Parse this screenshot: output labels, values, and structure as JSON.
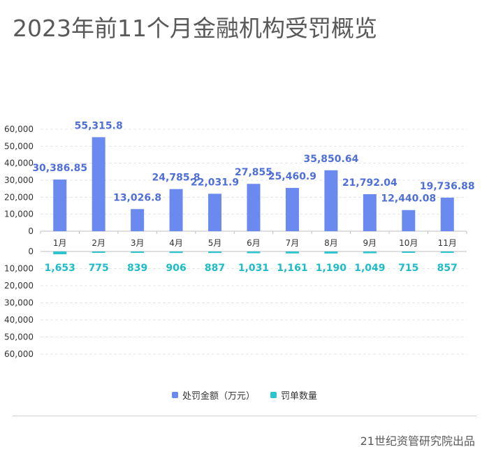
{
  "title": "2023年前11个月金融机构受罚概览",
  "footer": {
    "source": "21世纪资管研究院出品"
  },
  "colors": {
    "amount": "#6b8af0",
    "amount_label": "#4f6fd6",
    "count": "#2ec4cf",
    "count_label": "#1dbcc8",
    "axis_text": "#333333",
    "grid": "#e6e6e6"
  },
  "chart_data": [
    {
      "type": "bar",
      "categories": [
        "1月",
        "2月",
        "3月",
        "4月",
        "5月",
        "6月",
        "7月",
        "8月",
        "9月",
        "10月",
        "11月"
      ],
      "series": [
        {
          "name": "处罚金额（万元）",
          "values": [
            30386.85,
            55315.8,
            13026.8,
            24785.8,
            22031.9,
            27855,
            25460.9,
            35850.64,
            21792.04,
            12440.08,
            19736.88
          ],
          "labels": [
            "30,386.85",
            "55,315.8",
            "13,026.8",
            "24,785.8",
            "22,031.9",
            "27,855",
            "25,460.9",
            "35,850.64",
            "21,792.04",
            "12,440.08",
            "19,736.88"
          ]
        }
      ],
      "ylim": [
        0,
        60000
      ],
      "yticks": [
        0,
        10000,
        20000,
        30000,
        40000,
        50000,
        60000
      ],
      "ytick_labels": [
        "0",
        "10,000",
        "20,000",
        "30,000",
        "40,000",
        "50,000",
        "60,000"
      ],
      "grid": true
    },
    {
      "type": "bar",
      "orientation": "mirrored-downward",
      "categories": [
        "1月",
        "2月",
        "3月",
        "4月",
        "5月",
        "6月",
        "7月",
        "8月",
        "9月",
        "10月",
        "11月"
      ],
      "series": [
        {
          "name": "罚单数量",
          "values": [
            1653,
            775,
            839,
            906,
            887,
            1031,
            1161,
            1190,
            1049,
            715,
            857
          ],
          "labels": [
            "1,653",
            "775",
            "839",
            "906",
            "887",
            "1,031",
            "1,161",
            "1,190",
            "1,049",
            "715",
            "857"
          ]
        }
      ],
      "ylim": [
        0,
        60000
      ],
      "yticks": [
        0,
        10000,
        20000,
        30000,
        40000,
        50000,
        60000
      ],
      "ytick_labels": [
        "0",
        "10,000",
        "20,000",
        "30,000",
        "40,000",
        "50,000",
        "60,000"
      ],
      "grid": true
    }
  ],
  "legend": {
    "placement": "bottom-center",
    "items": [
      {
        "label": "处罚金额（万元）",
        "color": "#6b8af0"
      },
      {
        "label": "罚单数量",
        "color": "#2ec4cf"
      }
    ]
  }
}
